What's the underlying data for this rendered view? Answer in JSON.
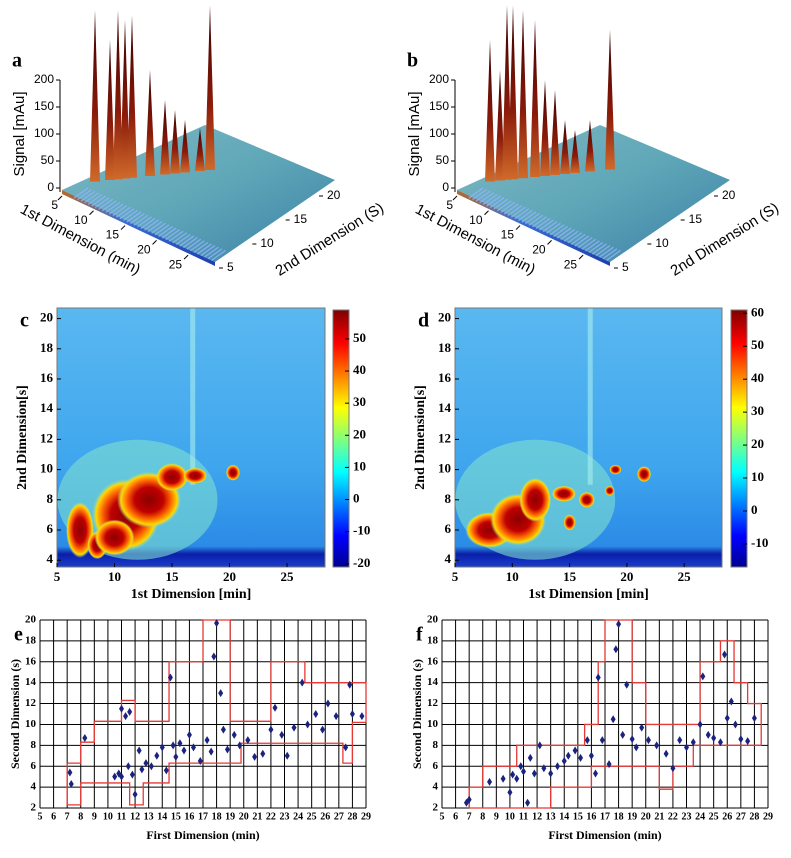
{
  "chart_data": [
    {
      "type": "surface3d",
      "panel": "a",
      "zlabel": "Signal [mAu]",
      "xlabel": "1st  Dimension (min)",
      "ylabel": "2nd  Dimension (S)",
      "zlim": [
        0,
        200
      ],
      "zticks": [
        0,
        50,
        100,
        150,
        200
      ],
      "xlim": [
        5,
        28
      ],
      "xticks": [
        5,
        10,
        15,
        20,
        25
      ],
      "ylim": [
        5,
        20
      ],
      "yticks": [
        5,
        10,
        15,
        20
      ]
    },
    {
      "type": "surface3d",
      "panel": "b",
      "zlabel": "Signal [mAu]",
      "xlabel": "1st  Dimension (min)",
      "ylabel": "2nd  Dimension (S)",
      "zlim": [
        0,
        200
      ],
      "zticks": [
        0,
        50,
        100,
        150,
        200
      ],
      "xlim": [
        5,
        28
      ],
      "xticks": [
        5,
        10,
        15,
        20,
        25
      ],
      "ylim": [
        5,
        20
      ],
      "yticks": [
        5,
        10,
        15,
        20
      ]
    },
    {
      "type": "heatmap",
      "panel": "c",
      "xlabel": "1st Dimension [min]",
      "ylabel": "2nd Dimension[s]",
      "xlim": [
        5,
        28.3
      ],
      "xticks": [
        5,
        10,
        15,
        20,
        25
      ],
      "ylim": [
        3.55,
        20.7
      ],
      "yticks": [
        4,
        6,
        8,
        10,
        12,
        14,
        16,
        18,
        20
      ],
      "clim": [
        -21,
        59
      ],
      "cticks": [
        50,
        40,
        30,
        20,
        10,
        0,
        -10,
        -20
      ]
    },
    {
      "type": "heatmap",
      "panel": "d",
      "xlabel": "1st Dimension [min]",
      "ylabel": "2nd Dimension[s]",
      "xlim": [
        5,
        28.3
      ],
      "xticks": [
        5,
        10,
        15,
        20,
        25
      ],
      "ylim": [
        3.55,
        20.7
      ],
      "yticks": [
        4,
        6,
        8,
        10,
        12,
        14,
        16,
        18,
        20
      ],
      "clim": [
        -17,
        61
      ],
      "cticks": [
        60,
        50,
        40,
        30,
        20,
        10,
        0,
        -10
      ]
    },
    {
      "type": "scatter",
      "panel": "e",
      "xlabel": "First Dimension (min)",
      "ylabel": "Second  Dimension (s)",
      "xlim": [
        5,
        29
      ],
      "xticks": [
        5,
        6,
        7,
        8,
        9,
        10,
        11,
        12,
        13,
        14,
        15,
        16,
        17,
        18,
        19,
        20,
        21,
        22,
        23,
        24,
        25,
        26,
        27,
        28,
        29
      ],
      "ylim": [
        2,
        20
      ],
      "yticks": [
        2,
        4,
        6,
        8,
        10,
        12,
        14,
        16,
        18,
        20
      ],
      "grid": true,
      "color": "#1a237e",
      "x": [
        7.2,
        7.3,
        8.3,
        10.5,
        10.8,
        11,
        11,
        11.3,
        11.6,
        11.5,
        11.8,
        12,
        12.3,
        12.5,
        12.8,
        13.2,
        13.6,
        14,
        14.3,
        14.6,
        14.8,
        15,
        15.3,
        15.6,
        16,
        16.3,
        16.8,
        17.3,
        17.6,
        17.8,
        18,
        18.3,
        18.5,
        18.8,
        19.3,
        19.7,
        20.3,
        20.8,
        21.4,
        22,
        22.3,
        22.8,
        23.2,
        23.7,
        24.3,
        24.7,
        25.3,
        25.8,
        26.2,
        26.8,
        27.5,
        27.8,
        28,
        28.7
      ],
      "y": [
        5.4,
        4.3,
        8.7,
        5,
        5.3,
        11.5,
        5,
        10.8,
        11.2,
        6,
        5.2,
        3.3,
        7.5,
        5.7,
        6.3,
        6,
        7,
        7.8,
        5.6,
        14.5,
        8,
        6.9,
        8.2,
        7.5,
        9,
        7.8,
        6.5,
        8.5,
        7.4,
        16.5,
        19.7,
        13,
        9.5,
        7.6,
        9,
        8,
        8.5,
        6.9,
        7.2,
        9.5,
        11.6,
        9,
        7,
        9.7,
        14,
        10,
        11,
        9.5,
        12,
        10.8,
        7.8,
        13.8,
        11,
        10.8
      ],
      "boundaries": [
        {
          "color": "#e53935",
          "x": [
            7,
            8,
            8,
            9,
            9,
            11,
            11,
            12,
            12,
            14.5,
            14.5,
            17,
            17,
            19,
            19,
            22,
            22,
            24.5,
            24.5,
            29,
            29
          ],
          "y": [
            6.3,
            6.3,
            8.3,
            8.3,
            10.3,
            10.3,
            12.3,
            12.3,
            10.3,
            10.3,
            16,
            16,
            20,
            20,
            10.3,
            10.3,
            16,
            16,
            14,
            14,
            10.2
          ]
        },
        {
          "color": "#e53935",
          "x": [
            7,
            7,
            8,
            8,
            11.6,
            11.6,
            12.6,
            12.6,
            14.5,
            14.5,
            19.8,
            19.8,
            25,
            25,
            27.3,
            27.3,
            28,
            28,
            29
          ],
          "y": [
            6.3,
            2.3,
            2.3,
            4.4,
            4.4,
            2.3,
            2.3,
            4.4,
            4.4,
            6.3,
            6.3,
            8.2,
            8.2,
            8.2,
            8.2,
            6.3,
            6.3,
            10.2,
            10.2
          ]
        }
      ]
    },
    {
      "type": "scatter",
      "panel": "f",
      "xlabel": "First Dimension (min)",
      "ylabel": "Second  Dimension (s)",
      "xlim": [
        5,
        29
      ],
      "xticks": [
        5,
        6,
        7,
        8,
        9,
        10,
        11,
        12,
        13,
        14,
        15,
        16,
        17,
        18,
        19,
        20,
        21,
        22,
        23,
        24,
        25,
        26,
        27,
        28,
        29
      ],
      "ylim": [
        2,
        20
      ],
      "yticks": [
        2,
        4,
        6,
        8,
        10,
        12,
        14,
        16,
        18,
        20
      ],
      "grid": true,
      "color": "#1a237e",
      "x": [
        6.8,
        7,
        8.5,
        9.5,
        10,
        10.2,
        10.5,
        10.8,
        11,
        11.3,
        11.5,
        11.8,
        12.2,
        12.5,
        13,
        13.5,
        14,
        14.3,
        14.8,
        15.2,
        15.7,
        16,
        16.3,
        16.5,
        16.8,
        17.3,
        17.6,
        17.8,
        18,
        18.3,
        18.6,
        19,
        19.3,
        19.7,
        20.2,
        20.8,
        21.5,
        22,
        22.5,
        23,
        23.5,
        24,
        24.2,
        24.6,
        25,
        25.5,
        25.8,
        26,
        26.3,
        26.6,
        27,
        27.5,
        28
      ],
      "y": [
        2.5,
        2.8,
        4.5,
        4.8,
        3.5,
        5.2,
        4.8,
        6,
        5.5,
        2.5,
        6.8,
        5.3,
        8,
        5.8,
        5.3,
        6,
        6.5,
        7,
        7.5,
        6.8,
        8.5,
        7,
        5.3,
        14.5,
        8.5,
        6.2,
        10.5,
        17.2,
        19.6,
        9,
        13.8,
        8.6,
        7.8,
        9.7,
        8.5,
        8,
        7.2,
        5.8,
        8.5,
        7.8,
        8.3,
        10,
        14.6,
        9,
        8.7,
        8.3,
        16.7,
        10.6,
        12.2,
        10,
        8.6,
        8.4,
        10.6
      ],
      "boundaries": [
        {
          "color": "#e53935",
          "x": [
            7,
            7,
            8,
            8,
            10.5,
            10.5,
            15.5,
            15.5,
            16.5,
            16.5,
            17,
            17,
            19,
            19,
            20,
            20,
            24,
            24,
            25.5,
            25.5,
            26.5,
            26.5,
            27.5,
            27.5,
            28.5,
            28.5
          ],
          "y": [
            2,
            4,
            4,
            6,
            6,
            8,
            8,
            10,
            10,
            16,
            16,
            20,
            20,
            14,
            14,
            10,
            10,
            16,
            16,
            18,
            18,
            14,
            14,
            12,
            12,
            8
          ]
        },
        {
          "color": "#e53935",
          "x": [
            7,
            13,
            13,
            16,
            16,
            21,
            21,
            22,
            22,
            23.5,
            23.5,
            28.5
          ],
          "y": [
            2,
            2,
            4,
            4,
            6,
            6,
            3.8,
            3.8,
            6,
            6,
            8,
            8
          ]
        }
      ]
    }
  ]
}
